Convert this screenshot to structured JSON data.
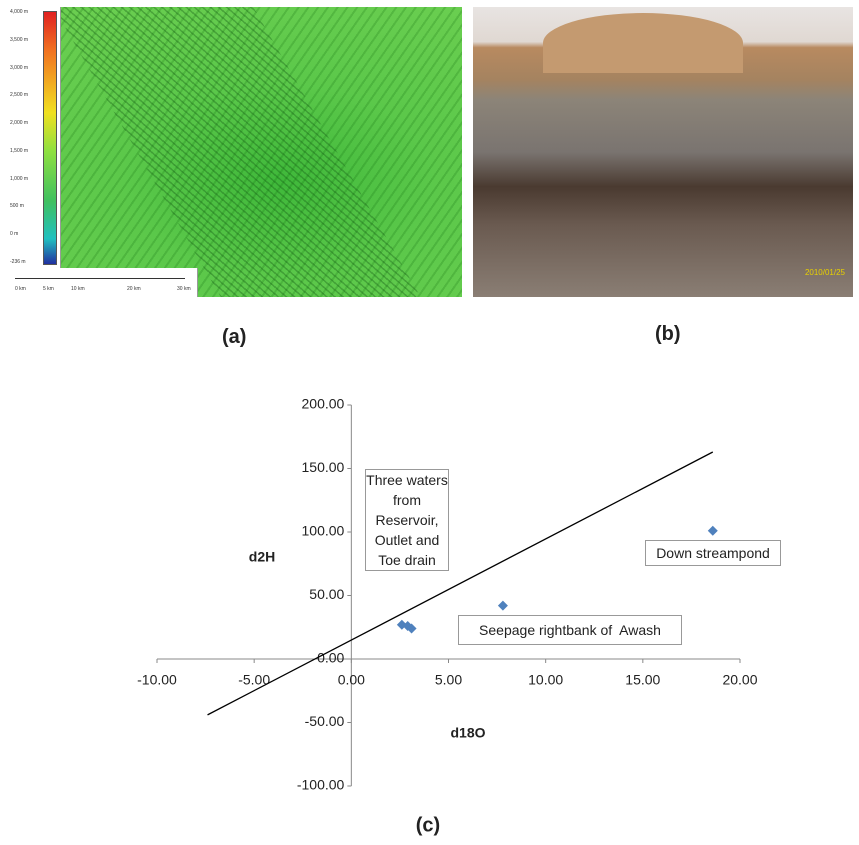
{
  "panels": {
    "a": {
      "label": "(a)",
      "elevation_legend": [
        "4,000 m",
        "3,500 m",
        "3,000 m",
        "2,500 m",
        "2,000 m",
        "1,500 m",
        "1,000 m",
        "500 m",
        "0 m",
        "-236 m"
      ],
      "scale_bar": [
        "0 km",
        "5 km",
        "10 km",
        "20 km",
        "30 km"
      ]
    },
    "b": {
      "label": "(b)",
      "date_stamp": "2010/01/25"
    }
  },
  "chart_data": {
    "type": "scatter",
    "caption": "(c)",
    "x_label": "d18O",
    "y_label": "d2H",
    "x": [
      2.6,
      2.9,
      3.1,
      7.8,
      18.6
    ],
    "y": [
      27,
      26,
      24,
      42,
      101
    ],
    "color": "#4f81bd",
    "trendline": {
      "x": [
        -7.4,
        18.6
      ],
      "y": [
        -44,
        163
      ]
    },
    "annotations": [
      "Three waters from Reservoir, Outlet and Toe drain",
      "Seepage rightbank of  Awash",
      "Down streampond"
    ],
    "xlim": [
      -10,
      20
    ],
    "xticks": [
      {
        "value": -10,
        "label": "-10.00"
      },
      {
        "value": -5,
        "label": "-5.00"
      },
      {
        "value": 0,
        "label": "0.00"
      },
      {
        "value": 5,
        "label": "5.00"
      },
      {
        "value": 10,
        "label": "10.00"
      },
      {
        "value": 15,
        "label": "15.00"
      },
      {
        "value": 20,
        "label": "20.00"
      }
    ],
    "ylim": [
      -100,
      200
    ],
    "yticks": [
      {
        "value": -100,
        "label": "-100.00"
      },
      {
        "value": -50,
        "label": "-50.00"
      },
      {
        "value": 0,
        "label": "0.00"
      },
      {
        "value": 50,
        "label": "50.00"
      },
      {
        "value": 100,
        "label": "100.00"
      },
      {
        "value": 150,
        "label": "150.00"
      },
      {
        "value": 200,
        "label": "200.00"
      }
    ],
    "grid": false
  }
}
